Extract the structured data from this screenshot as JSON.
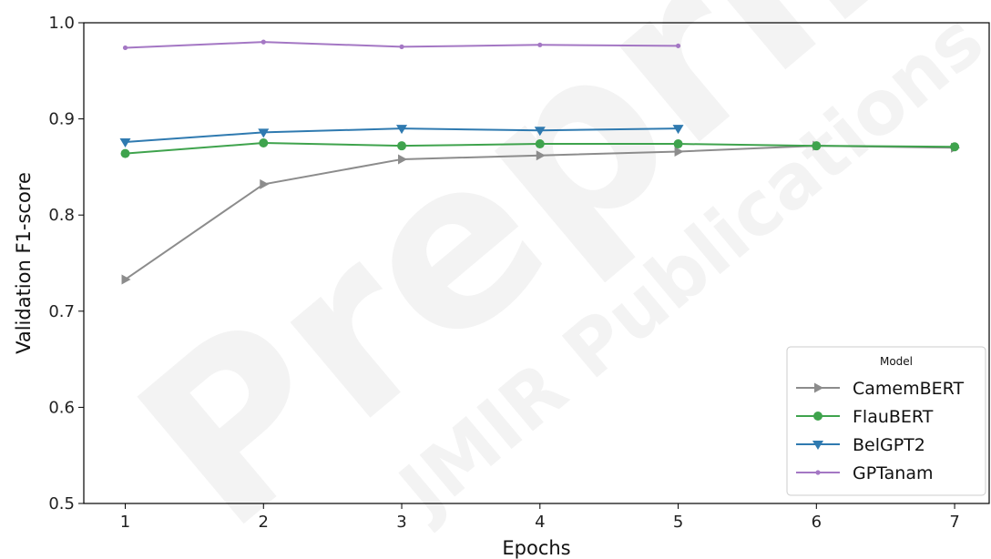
{
  "watermark": {
    "main": "Preprint",
    "sub": "JMIR Publications"
  },
  "chart_data": {
    "type": "line",
    "xlabel": "Epochs",
    "ylabel": "Validation F1-score",
    "x_ticks": [
      1,
      2,
      3,
      4,
      5,
      6,
      7
    ],
    "y_ticks": [
      "0.5",
      "0.6",
      "0.7",
      "0.8",
      "0.9",
      "1.0"
    ],
    "xlim": [
      0.7,
      7.25
    ],
    "ylim": [
      0.5,
      1.0
    ],
    "grid": false,
    "legend_title": "Model",
    "legend_position": "lower-right",
    "series": [
      {
        "name": "CamemBERT",
        "color": "#8c8c8c",
        "marker": "triangle-right",
        "x": [
          1,
          2,
          3,
          4,
          5,
          6,
          7
        ],
        "y": [
          0.733,
          0.832,
          0.858,
          0.862,
          0.866,
          0.872,
          0.87
        ]
      },
      {
        "name": "FlauBERT",
        "color": "#3fa34d",
        "marker": "circle",
        "x": [
          1,
          2,
          3,
          4,
          5,
          6,
          7
        ],
        "y": [
          0.864,
          0.875,
          0.872,
          0.874,
          0.874,
          0.872,
          0.871
        ]
      },
      {
        "name": "BelGPT2",
        "color": "#2f7ab0",
        "marker": "triangle-down",
        "x": [
          1,
          2,
          3,
          4,
          5
        ],
        "y": [
          0.876,
          0.886,
          0.89,
          0.888,
          0.89
        ]
      },
      {
        "name": "GPTanam",
        "color": "#a477c4",
        "marker": "dot",
        "x": [
          1,
          2,
          3,
          4,
          5
        ],
        "y": [
          0.974,
          0.98,
          0.975,
          0.977,
          0.976
        ]
      }
    ]
  }
}
